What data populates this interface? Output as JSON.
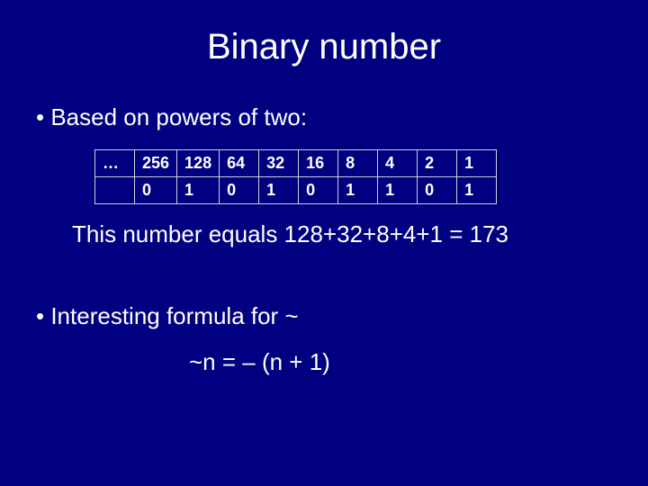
{
  "title": "Binary number",
  "bullet1": "Based on powers of two:",
  "table": {
    "headers": [
      "…",
      "256",
      "128",
      "64",
      "32",
      "16",
      "8",
      "4",
      "2",
      "1"
    ],
    "values": [
      "",
      "0",
      "1",
      "0",
      "1",
      "0",
      "1",
      "1",
      "0",
      "1"
    ]
  },
  "equation": "This number equals 128+32+8+4+1 = 173",
  "bullet2": "Interesting formula for ~",
  "formula": "~n = – (n + 1)",
  "colors": {
    "background": "#000080",
    "text": "#ffffff",
    "border": "#d0d0d0"
  },
  "fonts": {
    "title_size": 40,
    "body_size": 26,
    "table_size": 18
  }
}
